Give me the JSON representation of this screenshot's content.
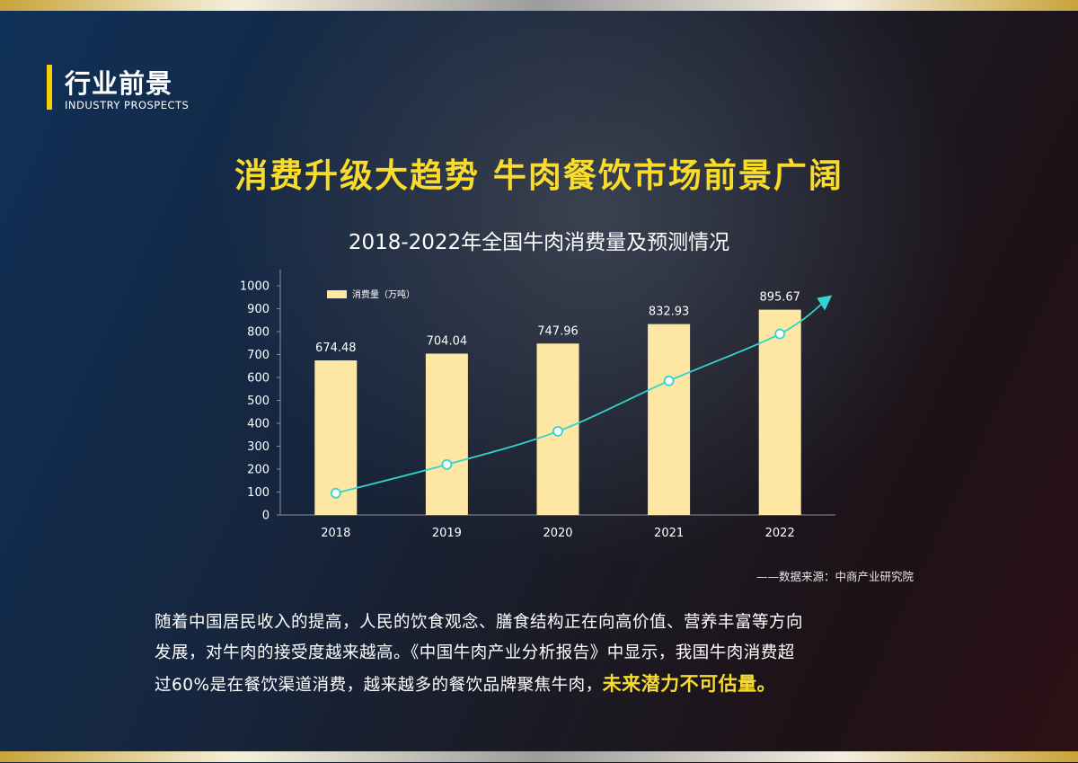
{
  "section": {
    "title": "行业前景",
    "subtitle": "INDUSTRY PROSPECTS"
  },
  "headline": "消费升级大趋势 牛肉餐饮市场前景广阔",
  "source": "——数据来源：中商产业研究院",
  "body": {
    "line1": "随着中国居民收入的提高，人民的饮食观念、膳食结构正在向高价值、营养丰富等方向",
    "line2": "发展，对牛肉的接受度越来越高。《中国牛肉产业分析报告》中显示，我国牛肉消费超",
    "line3": "过60%是在餐饮渠道消费，越来越多的餐饮品牌聚焦牛肉，",
    "highlight": "未来潜力不可估量。"
  },
  "colors": {
    "accent": "#f8db2b",
    "bar": "#fde7a3",
    "trend": "#33d4d0"
  },
  "chart_data": {
    "type": "bar",
    "title": "2018-2022年全国牛肉消费量及预测情况",
    "categories": [
      "2018",
      "2019",
      "2020",
      "2021",
      "2022"
    ],
    "series": [
      {
        "name": "消费量（万吨）",
        "values": [
          674.48,
          704.04,
          747.96,
          832.93,
          895.67
        ]
      }
    ],
    "trend_line": {
      "values": [
        95,
        220,
        365,
        585,
        790
      ],
      "end_arrow": true
    },
    "ylim": [
      0,
      1000
    ],
    "yticks": [
      0,
      100,
      200,
      300,
      400,
      500,
      600,
      700,
      800,
      900,
      1000
    ],
    "xlabel": "",
    "ylabel": "",
    "legend_position": "top-left",
    "grid": false
  }
}
